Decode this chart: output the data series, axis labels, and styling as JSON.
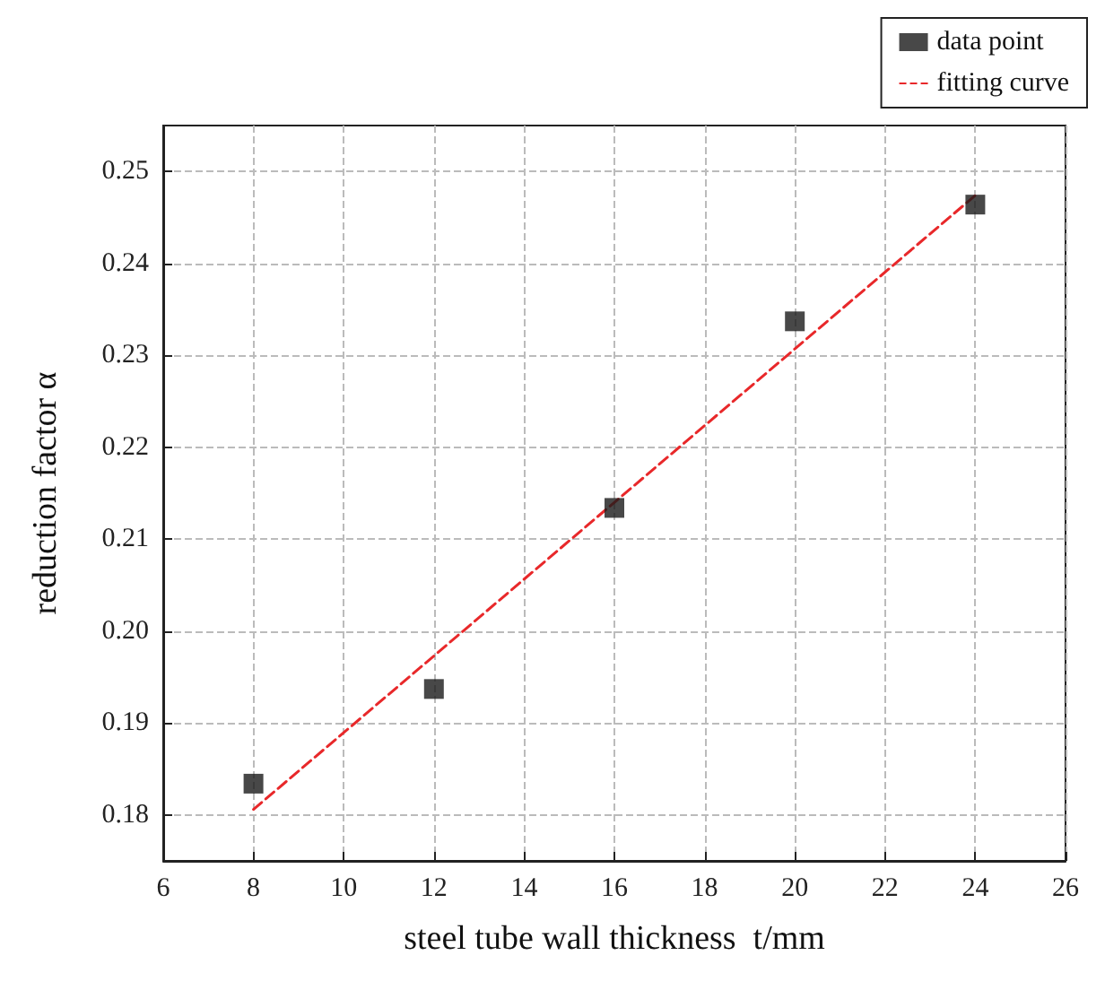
{
  "chart_data": {
    "type": "scatter",
    "xlabel": "steel tube wall thickness  t/mm",
    "ylabel": "reduction factor α",
    "x": [
      8,
      12,
      16,
      20,
      24
    ],
    "series": [
      {
        "name": "data point",
        "color": "#1a1a1a",
        "marker": "square",
        "values": [
          0.1834,
          0.1937,
          0.2134,
          0.2337,
          0.2464
        ]
      },
      {
        "name": "fitting curve",
        "type": "line",
        "color": "#e8282a",
        "line_style": "dashed",
        "marker": "none",
        "x": [
          8,
          24
        ],
        "values": [
          0.1806,
          0.2474
        ]
      }
    ],
    "xlim": [
      6,
      26
    ],
    "xticks": [
      6,
      8,
      10,
      12,
      14,
      16,
      18,
      20,
      22,
      24,
      26
    ],
    "ylim": [
      0.175,
      0.255
    ],
    "yticks": [
      0.18,
      0.19,
      {
        "value": 0.2,
        "label": "0.20"
      },
      0.21,
      0.22,
      0.23,
      0.24,
      0.25
    ],
    "grid": true,
    "legend": "top right"
  }
}
